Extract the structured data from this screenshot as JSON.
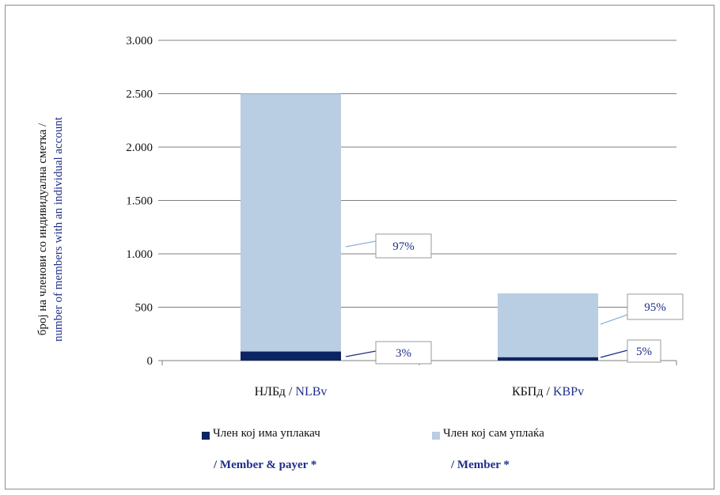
{
  "chart_data": {
    "type": "bar",
    "stacked": true,
    "y_axis_label_mk": "број на членови со индивидуална сметка /",
    "y_axis_label_en": "number of members with an individual account",
    "ylim": [
      0,
      3000
    ],
    "y_ticks": [
      {
        "value": 0,
        "label": "0"
      },
      {
        "value": 500,
        "label": "500"
      },
      {
        "value": 1000,
        "label": "1.000"
      },
      {
        "value": 1500,
        "label": "1.500"
      },
      {
        "value": 2000,
        "label": "2.000"
      },
      {
        "value": 2500,
        "label": "2.500"
      },
      {
        "value": 3000,
        "label": "3.000"
      }
    ],
    "grid": true,
    "categories": [
      {
        "label_mk": "НЛБд /",
        "label_en": "NLBv"
      },
      {
        "label_mk": "КБПд /",
        "label_en": "KBPv"
      }
    ],
    "series": [
      {
        "name_mk": "Член кој има уплакач",
        "name_en": "/ Member & payer *",
        "color": "#0d2463",
        "values": [
          85,
          32
        ],
        "labels": [
          "3%",
          "5%"
        ]
      },
      {
        "name_mk": "Член кој сам уплаќа",
        "name_en": "/ Member *",
        "color": "#b9cde3",
        "values": [
          2415,
          598
        ],
        "labels": [
          "97%",
          "95%"
        ]
      }
    ],
    "legend_position": "bottom"
  }
}
